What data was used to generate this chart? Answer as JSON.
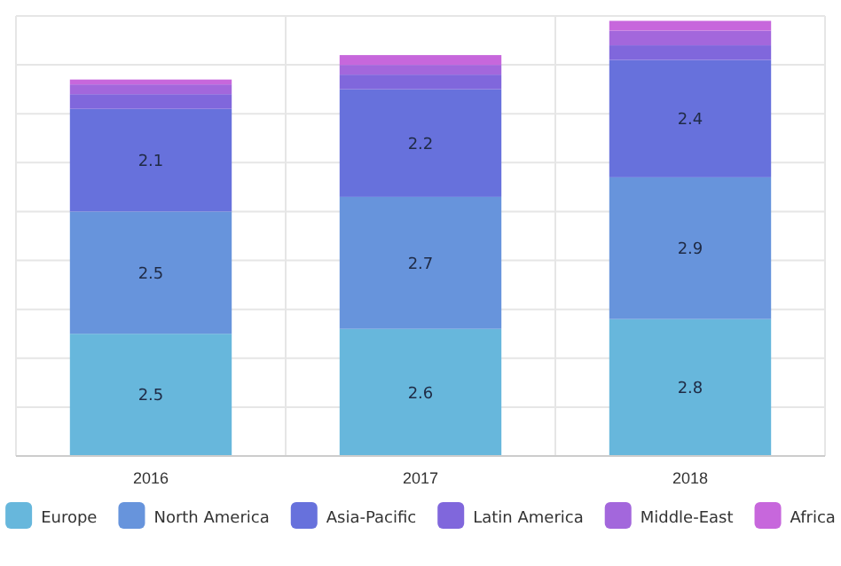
{
  "chart_data": {
    "type": "bar",
    "stacked": true,
    "categories": [
      "2016",
      "2017",
      "2018"
    ],
    "ylim": [
      0,
      9
    ],
    "yticks": [
      {
        "value": 0,
        "label": null
      },
      {
        "value": 1,
        "label": null
      },
      {
        "value": 2,
        "label": null
      },
      {
        "value": 3,
        "label": null
      },
      {
        "value": 4,
        "label": null
      },
      {
        "value": 5,
        "label": null
      },
      {
        "value": 6,
        "label": null
      },
      {
        "value": 7,
        "label": null
      },
      {
        "value": 8,
        "label": null
      },
      {
        "value": 9,
        "label": null
      }
    ],
    "tick_labels": "x",
    "grid": true,
    "legend": "bottom",
    "series": [
      {
        "name": "Europe",
        "color": "#67b7dc",
        "values": [
          2.5,
          2.6,
          2.8
        ],
        "value_labels": [
          "2.5",
          "2.6",
          "2.8"
        ]
      },
      {
        "name": "North America",
        "color": "#6794dc",
        "values": [
          2.5,
          2.7,
          2.9
        ],
        "value_labels": [
          "2.5",
          "2.7",
          "2.9"
        ]
      },
      {
        "name": "Asia-Pacific",
        "color": "#6771dc",
        "values": [
          2.1,
          2.2,
          2.4
        ],
        "value_labels": [
          "2.1",
          "2.2",
          "2.4"
        ]
      },
      {
        "name": "Latin America",
        "color": "#8067dc",
        "values": [
          0.3,
          0.3,
          0.3
        ],
        "value_labels": [
          null,
          null,
          null
        ]
      },
      {
        "name": "Middle-East",
        "color": "#a367dc",
        "values": [
          0.2,
          0.2,
          0.3
        ],
        "value_labels": [
          null,
          null,
          null
        ]
      },
      {
        "name": "Africa",
        "color": "#c767dc",
        "values": [
          0.1,
          0.2,
          0.2
        ],
        "value_labels": [
          null,
          null,
          null
        ]
      }
    ]
  }
}
